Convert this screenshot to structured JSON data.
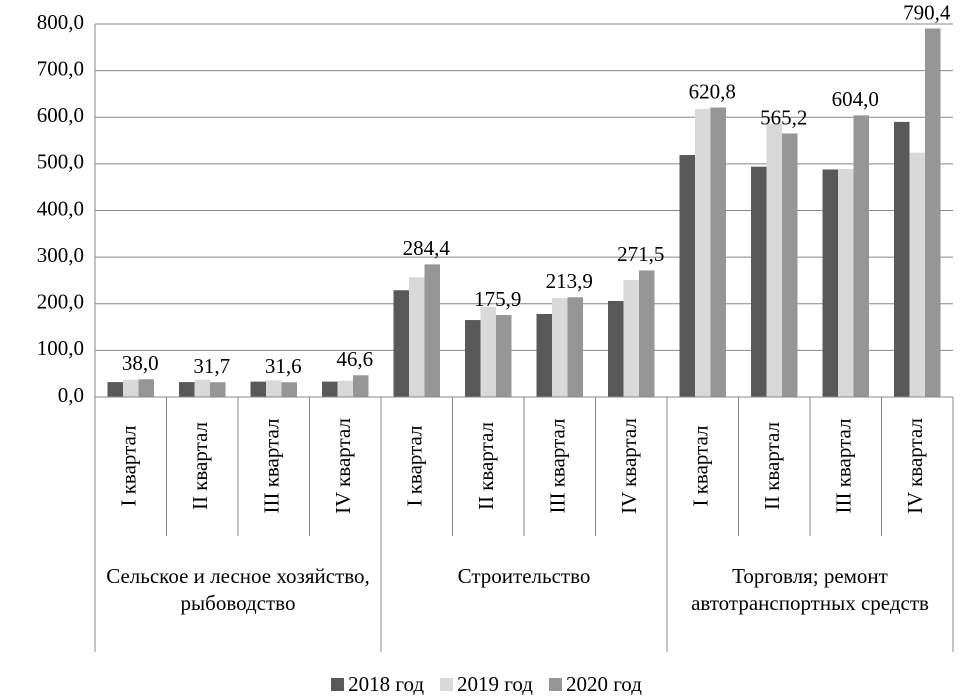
{
  "chart_data": {
    "type": "bar",
    "groups": [
      {
        "name": "Сельское и лесное хозяйство, рыбоводство",
        "categories": [
          "I квартал",
          "II квартал",
          "III квартал",
          "IV квартал"
        ]
      },
      {
        "name": "Строительство",
        "categories": [
          "I квартал",
          "II квартал",
          "III квартал",
          "IV квартал"
        ]
      },
      {
        "name": "Торговля; ремонт автотранспортных средств",
        "categories": [
          "I квартал",
          "II квартал",
          "III квартал",
          "IV квартал"
        ]
      }
    ],
    "series": [
      {
        "name": "2018 год",
        "color": "#595959",
        "values": [
          32,
          32,
          33,
          33,
          229,
          165,
          178,
          206,
          519,
          494,
          488,
          590
        ]
      },
      {
        "name": "2019 год",
        "color": "#d9d9d9",
        "values": [
          37,
          37,
          36,
          35,
          257,
          193,
          212,
          251,
          618,
          586,
          489,
          524
        ]
      },
      {
        "name": "2020 год",
        "color": "#969696",
        "values": [
          38.0,
          31.7,
          31.6,
          46.6,
          284.4,
          175.9,
          213.9,
          271.5,
          620.8,
          565.2,
          604.0,
          790.4
        ],
        "value_labels": [
          "38,0",
          "31,7",
          "31,6",
          "46,6",
          "284,4",
          "175,9",
          "213,9",
          "271,5",
          "620,8",
          "565,2",
          "604,0",
          "790,4"
        ]
      }
    ],
    "ylim": [
      0,
      800
    ],
    "yticks": [
      {
        "value": 0,
        "label": "0,0"
      },
      {
        "value": 100,
        "label": "100,0"
      },
      {
        "value": 200,
        "label": "200,0"
      },
      {
        "value": 300,
        "label": "300,0"
      },
      {
        "value": 400,
        "label": "400,0"
      },
      {
        "value": 500,
        "label": "500,0"
      },
      {
        "value": 600,
        "label": "600,0"
      },
      {
        "value": 700,
        "label": "700,0"
      },
      {
        "value": 800,
        "label": "800,0"
      }
    ],
    "grid": true
  }
}
